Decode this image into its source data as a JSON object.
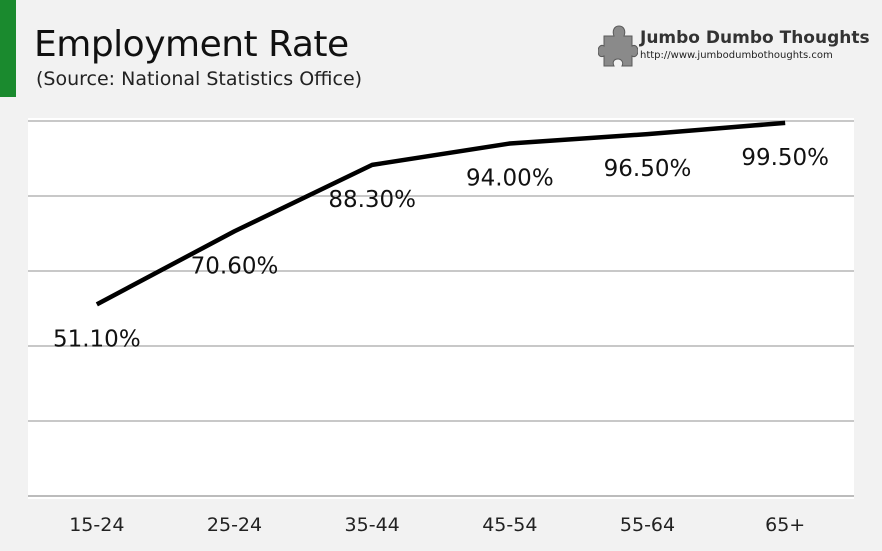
{
  "header": {
    "title": "Employment Rate",
    "subtitle": "(Source: National Statistics Office)",
    "brand_name": "Jumbo Dumbo Thoughts",
    "brand_url": "http://www.jumbodumbothoughts.com",
    "brand_icon": "puzzle-piece-icon"
  },
  "colors": {
    "accent": "#1a8a2e",
    "line": "#000000",
    "grid": "#a6a6a6",
    "plot_background": "#ffffff",
    "page_background": "#f2f2f2"
  },
  "chart_data": {
    "type": "line",
    "title": "Employment Rate",
    "subtitle": "(Source: National Statistics Office)",
    "categories": [
      "15-24",
      "25-24",
      "35-44",
      "45-54",
      "55-64",
      "65+"
    ],
    "series": [
      {
        "values": [
          51.1,
          70.6,
          88.3,
          94.0,
          96.5,
          99.5
        ],
        "labels": [
          "51.10%",
          "70.60%",
          "88.30%",
          "94.00%",
          "96.50%",
          "99.50%"
        ]
      }
    ],
    "ylim": [
      0,
      100
    ],
    "grid": true,
    "legend": "none"
  }
}
